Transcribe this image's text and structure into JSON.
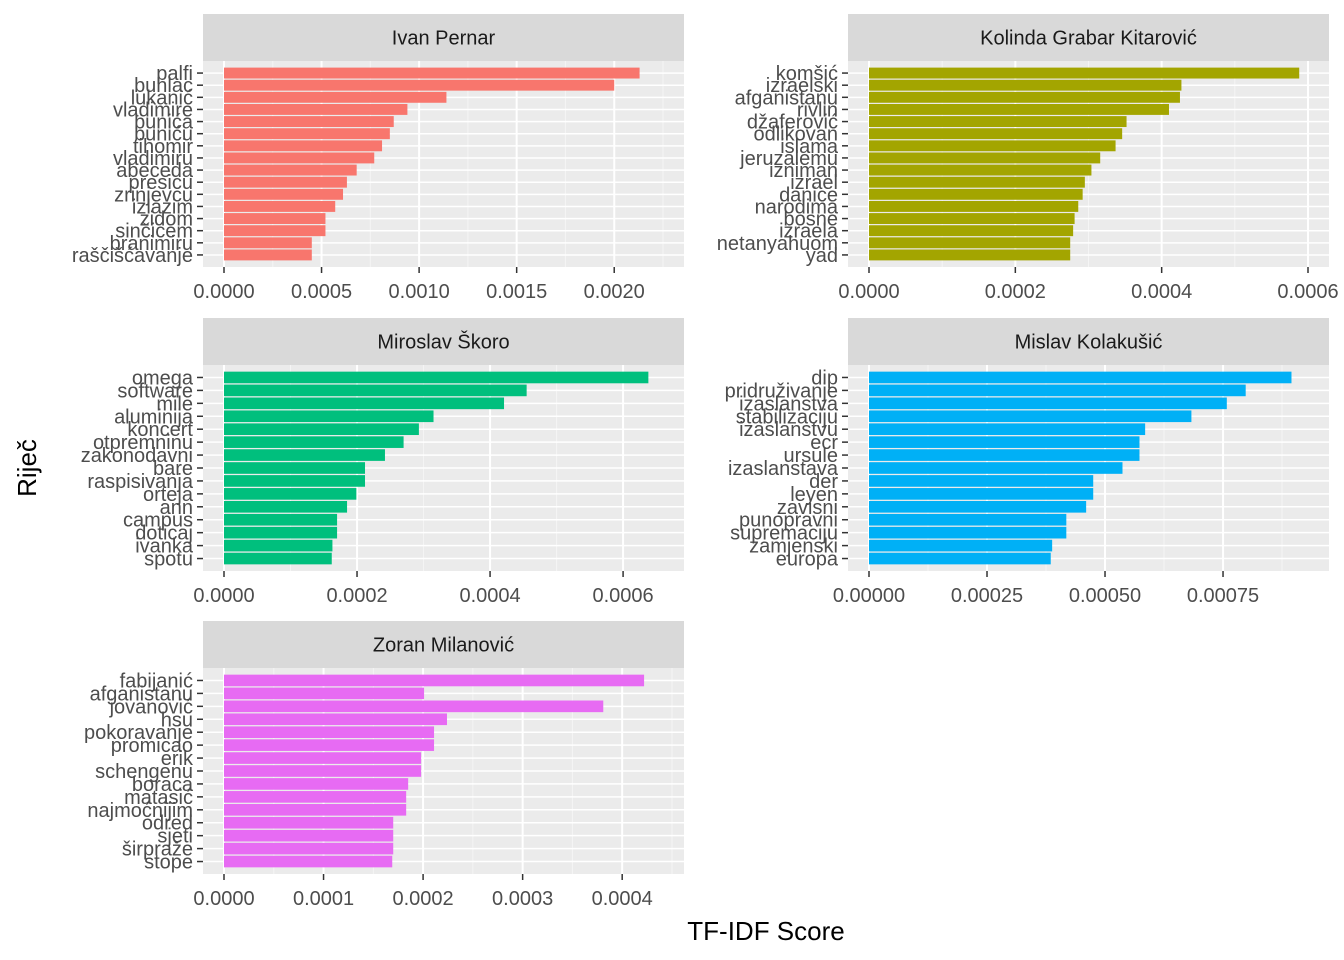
{
  "chart_data": {
    "type": "bar",
    "orientation": "horizontal",
    "xlabel": "TF-IDF Score",
    "ylabel": "Riječ",
    "grid": true,
    "legend": "none",
    "panels": [
      {
        "title": "Ivan Pernar",
        "color": "#F8766D",
        "xlim": [
          0,
          0.00225
        ],
        "ticks": [
          0,
          0.0005,
          0.001,
          0.0015,
          0.002
        ],
        "tick_labels": [
          "0.0000",
          "0.0005",
          "0.0010",
          "0.0015",
          "0.0020"
        ],
        "categories": [
          "palfi",
          "buhlac",
          "lukanić",
          "vladimire",
          "bunića",
          "buniću",
          "tihomir",
          "vladimiru",
          "abeceda",
          "presicu",
          "zrinjevcu",
          "izlazim",
          "zidom",
          "sinčićem",
          "branimiru",
          "raščišćavanje"
        ],
        "values": [
          0.00213,
          0.002,
          0.00114,
          0.00094,
          0.00087,
          0.00085,
          0.00081,
          0.00077,
          0.00068,
          0.00063,
          0.00061,
          0.00057,
          0.00052,
          0.00052,
          0.00045,
          0.00045
        ]
      },
      {
        "title": "Kolinda Grabar Kitarović",
        "color": "#A3A500",
        "xlim": [
          0,
          0.0006
        ],
        "ticks": [
          0,
          0.0002,
          0.0004,
          0.0006
        ],
        "tick_labels": [
          "0.0000",
          "0.0002",
          "0.0004",
          "0.0006"
        ],
        "categories": [
          "komšić",
          "izraelski",
          "afganistanu",
          "rivlin",
          "džaferović",
          "odlikovan",
          "islama",
          "jeruzalemu",
          "izniman",
          "izrael",
          "danice",
          "narodima",
          "bosne",
          "izraela",
          "netanyahuom",
          "yad"
        ],
        "values": [
          0.000588,
          0.000427,
          0.000425,
          0.00041,
          0.000352,
          0.000346,
          0.000337,
          0.000316,
          0.000304,
          0.000295,
          0.000292,
          0.000286,
          0.000281,
          0.000279,
          0.000275,
          0.000275
        ]
      },
      {
        "title": "Miroslav Škoro",
        "color": "#00BF7D",
        "xlim": [
          0,
          0.00066
        ],
        "ticks": [
          0,
          0.0002,
          0.0004,
          0.0006
        ],
        "tick_labels": [
          "0.0000",
          "0.0002",
          "0.0004",
          "0.0006"
        ],
        "categories": [
          "omega",
          "software",
          "mile",
          "aluminija",
          "koncert",
          "otpremninu",
          "zakonodavni",
          "bare",
          "raspisivanja",
          "orteja",
          "ann",
          "campus",
          "doticaj",
          "ivanka",
          "spotu"
        ],
        "values": [
          0.000638,
          0.000455,
          0.000421,
          0.000315,
          0.000293,
          0.00027,
          0.000242,
          0.000212,
          0.000212,
          0.000199,
          0.000185,
          0.00017,
          0.00017,
          0.000163,
          0.000162
        ]
      },
      {
        "title": "Mislav Kolakušić",
        "color": "#00B0F6",
        "xlim": [
          0,
          0.00093
        ],
        "ticks": [
          0,
          0.00025,
          0.0005,
          0.00075
        ],
        "tick_labels": [
          "0.00000",
          "0.00025",
          "0.00050",
          "0.00075"
        ],
        "categories": [
          "dip",
          "pridruživanje",
          "izaslanstva",
          "stabilizaciju",
          "izaslanstvu",
          "ecr",
          "ursule",
          "izaslanstava",
          "der",
          "leyen",
          "zavisni",
          "punopravni",
          "supremaciju",
          "zamjenski",
          "europa"
        ],
        "values": [
          0.000895,
          0.000798,
          0.000758,
          0.000683,
          0.000585,
          0.000573,
          0.000573,
          0.000537,
          0.000475,
          0.000475,
          0.00046,
          0.000418,
          0.000418,
          0.000388,
          0.000385
        ]
      },
      {
        "title": "Zoran Milanović",
        "color": "#E76BF3",
        "xlim": [
          0,
          0.000441
        ],
        "ticks": [
          0,
          0.0001,
          0.0002,
          0.0003,
          0.0004
        ],
        "tick_labels": [
          "0.0000",
          "0.0001",
          "0.0002",
          "0.0003",
          "0.0004"
        ],
        "categories": [
          "fabijanić",
          "afganistanu",
          "jovanović",
          "hsu",
          "pokoravanje",
          "promicao",
          "erik",
          "schengenu",
          "boraca",
          "matasić",
          "najmoćnijim",
          "odred",
          "sjeti",
          "širpraže",
          "stope"
        ],
        "values": [
          0.000422,
          0.000201,
          0.000381,
          0.000224,
          0.000211,
          0.000211,
          0.000198,
          0.000198,
          0.000185,
          0.000183,
          0.000183,
          0.00017,
          0.00017,
          0.00017,
          0.000169
        ]
      }
    ]
  }
}
